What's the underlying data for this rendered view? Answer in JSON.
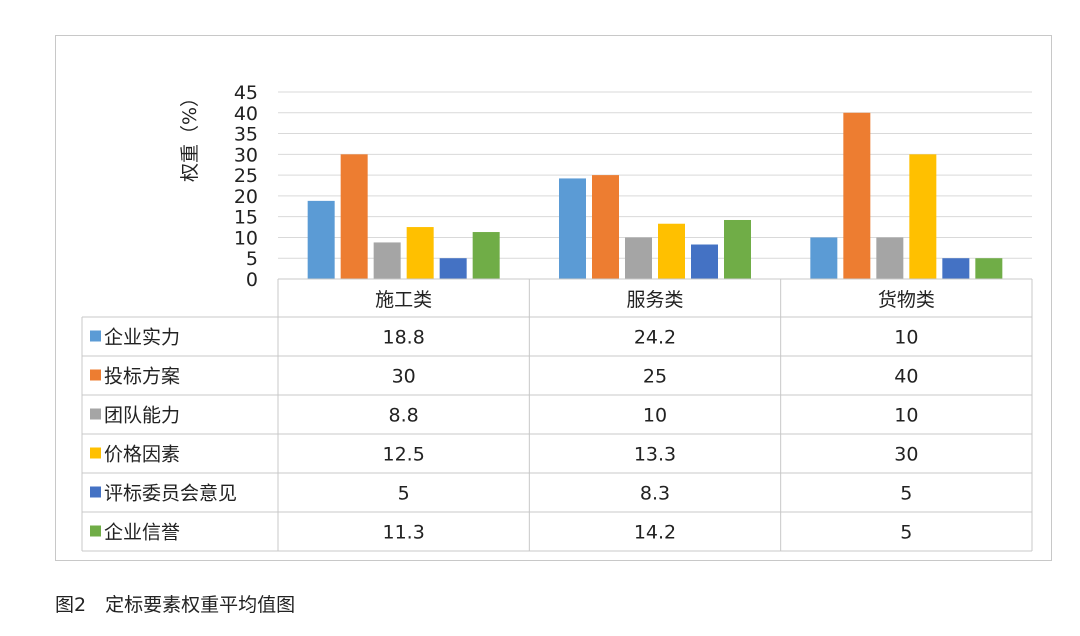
{
  "caption": "图2　定标要素权重平均值图",
  "chart_data": {
    "type": "bar",
    "title": "",
    "ylabel": "权重（%）",
    "xlabel": "",
    "ylim": [
      0,
      45
    ],
    "yticks": [
      0,
      5,
      10,
      15,
      20,
      25,
      30,
      35,
      40,
      45
    ],
    "grid": true,
    "legend": "data-table-left",
    "categories": [
      "施工类",
      "服务类",
      "货物类"
    ],
    "series": [
      {
        "name": "企业实力",
        "color": "#5b9bd5",
        "values": [
          18.8,
          24.2,
          10
        ]
      },
      {
        "name": "投标方案",
        "color": "#ed7d31",
        "values": [
          30,
          25,
          40
        ]
      },
      {
        "name": "团队能力",
        "color": "#a5a5a5",
        "values": [
          8.8,
          10,
          10
        ]
      },
      {
        "name": "价格因素",
        "color": "#ffc000",
        "values": [
          12.5,
          13.3,
          30
        ]
      },
      {
        "name": "评标委员会意见",
        "color": "#4472c4",
        "values": [
          5,
          8.3,
          5
        ]
      },
      {
        "name": "企业信誉",
        "color": "#70ad47",
        "values": [
          11.3,
          14.2,
          5
        ]
      }
    ]
  }
}
